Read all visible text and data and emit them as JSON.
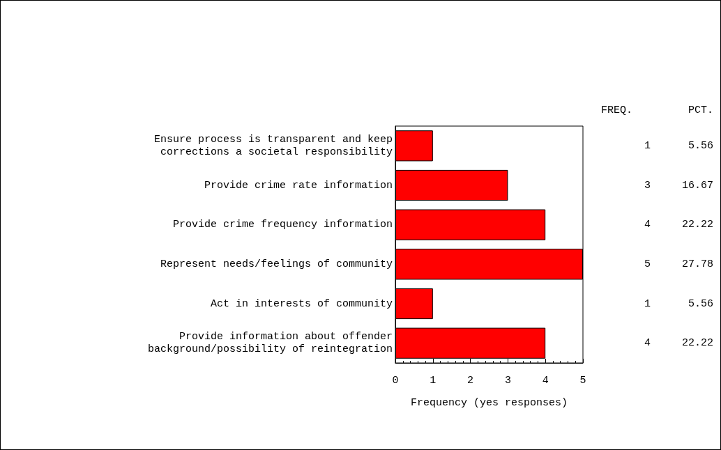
{
  "chart_data": {
    "type": "bar",
    "orientation": "horizontal",
    "xlabel": "Frequency (yes responses)",
    "categories": [
      "Ensure process is transparent and keep\ncorrections a societal responsibility",
      "Provide crime rate information",
      "Provide crime frequency information",
      "Represent needs/feelings of community",
      "Act in interests of community",
      "Provide information about offender\nbackground/possibility of reintegration"
    ],
    "values": [
      1,
      3,
      4,
      5,
      1,
      4
    ],
    "color": "#ff0000",
    "xlim": [
      0,
      5
    ],
    "xticks": [
      0,
      1,
      2,
      3,
      4,
      5
    ],
    "grid": false,
    "data_labels": true,
    "annotations": [
      "FREQ.",
      "PCT.",
      "5.56",
      "16.67",
      "22.22",
      "27.78",
      "5.56",
      "22.22"
    ]
  }
}
